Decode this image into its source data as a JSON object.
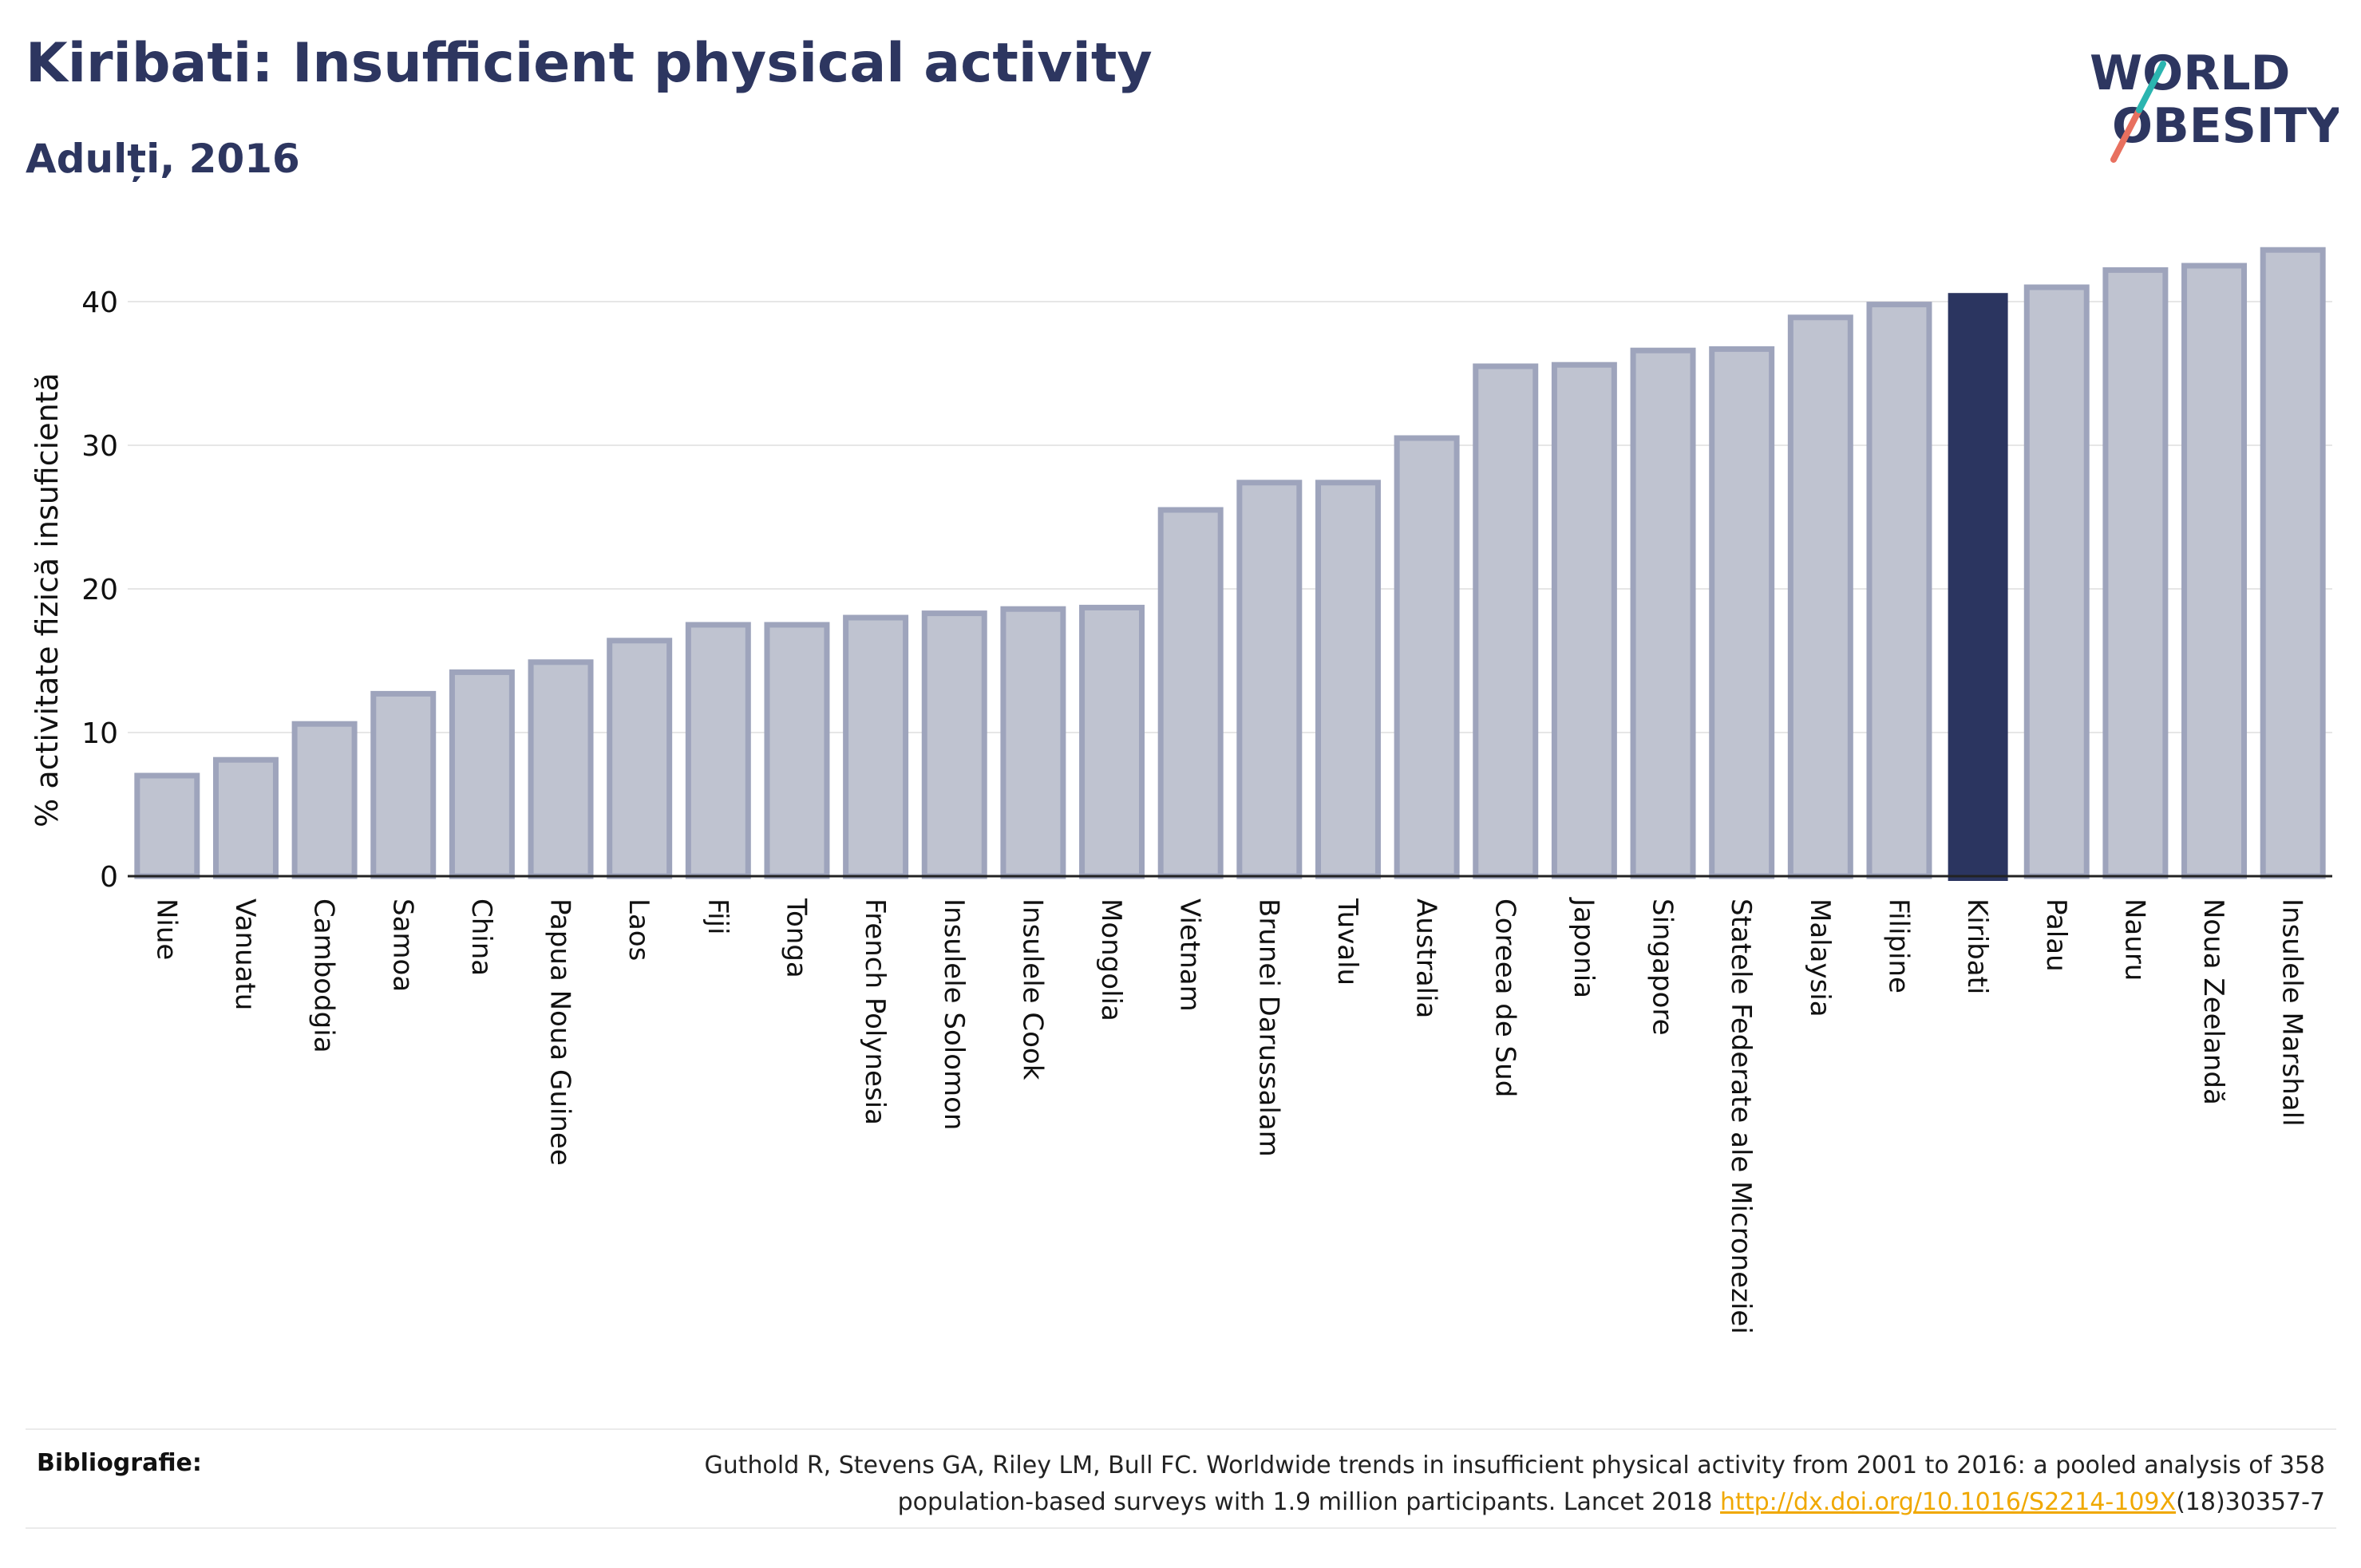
{
  "header": {
    "title": "Kiribati: Insufficient physical activity",
    "subtitle": "Adulți, 2016"
  },
  "logo": {
    "line1": "WORLD",
    "line2": "OBESITY"
  },
  "colors": {
    "bar": "#bfc3d0",
    "bar_stroke": "#9ea4bc",
    "highlight": "#2b3560",
    "text": "#2d3660",
    "grid": "#e6e6e6",
    "logo_slash": "#e8705f",
    "logo_accent": "#2bb5b0"
  },
  "chart_data": {
    "type": "bar",
    "title": "Kiribati: Insufficient physical activity",
    "subtitle": "Adulți, 2016",
    "ylabel": "% activitate fizică insuficientă",
    "xlabel": "",
    "ylim": [
      0,
      45
    ],
    "yticks": [
      0,
      10,
      20,
      30,
      40
    ],
    "grid": true,
    "highlight": "Kiribati",
    "categories": [
      "Niue",
      "Vanuatu",
      "Cambodgia",
      "Samoa",
      "China",
      "Papua Noua Guinee",
      "Laos",
      "Fiji",
      "Tonga",
      "French Polynesia",
      "Insulele Solomon",
      "Insulele Cook",
      "Mongolia",
      "Vietnam",
      "Brunei Darussalam",
      "Tuvalu",
      "Australia",
      "Coreea de Sud",
      "Japonia",
      "Singapore",
      "Statele Federate ale Microneziei",
      "Malaysia",
      "Filipine",
      "Kiribati",
      "Palau",
      "Nauru",
      "Noua Zeelandă",
      "Insulele Marshall"
    ],
    "values": [
      7.0,
      8.1,
      10.6,
      12.7,
      14.2,
      14.9,
      16.4,
      17.5,
      17.5,
      18.0,
      18.3,
      18.6,
      18.7,
      25.5,
      27.4,
      27.4,
      30.5,
      35.5,
      35.6,
      36.6,
      36.7,
      38.9,
      39.8,
      40.6,
      41.0,
      42.2,
      42.5,
      43.6
    ]
  },
  "bibliography": {
    "label": "Bibliografie:",
    "text_line1": "Guthold R, Stevens GA, Riley LM, Bull FC. Worldwide trends in insufficient physical activity from 2001 to 2016: a pooled analysis of 358",
    "text_line2_pre": "population-based surveys with 1.9 million participants. Lancet 2018 ",
    "link": "http://dx.doi.org/10.1016/S2214-109X",
    "text_line2_post": "(18)30357-7"
  }
}
